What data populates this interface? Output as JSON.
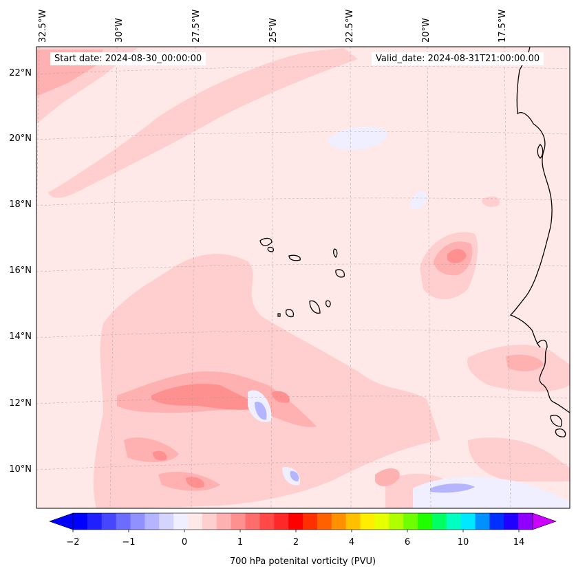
{
  "map": {
    "start_date": "Start date: 2024-08-30_00:00:00",
    "valid_date": "Valid_date: 2024-08-31T21:00:00.00",
    "longitude_labels": [
      "32.5°W",
      "30°W",
      "27.5°W",
      "25°W",
      "22.5°W",
      "20°W",
      "17.5°W"
    ],
    "latitude_labels": [
      "22°N",
      "20°N",
      "18°N",
      "16°N",
      "14°N",
      "12°N",
      "10°N"
    ],
    "background_color": "#ffe8e8"
  },
  "colorbar": {
    "title": "700 hPa potenital vorticity (PVU)",
    "tick_labels": [
      "−2",
      "−1",
      "0",
      "1",
      "2",
      "4",
      "6",
      "10",
      "14"
    ],
    "colors": [
      "#0000ff",
      "#2020ff",
      "#4646ff",
      "#6c6cff",
      "#9090ff",
      "#b4b4ff",
      "#d4d4ff",
      "#efefff",
      "#ffe8e8",
      "#ffcece",
      "#ffb0b0",
      "#ff9090",
      "#ff6c6c",
      "#ff4848",
      "#ff2828",
      "#ff0000",
      "#ff3000",
      "#ff6000",
      "#ff9000",
      "#ffc000",
      "#ffee00",
      "#e8ff00",
      "#b0ff00",
      "#70ff00",
      "#20ff00",
      "#00ff60",
      "#00ffc0",
      "#00e8ff",
      "#0090ff",
      "#0030ff",
      "#2000ff",
      "#9000ff"
    ],
    "low_extend_color": "#0000ff",
    "high_extend_color": "#cc00ff"
  }
}
